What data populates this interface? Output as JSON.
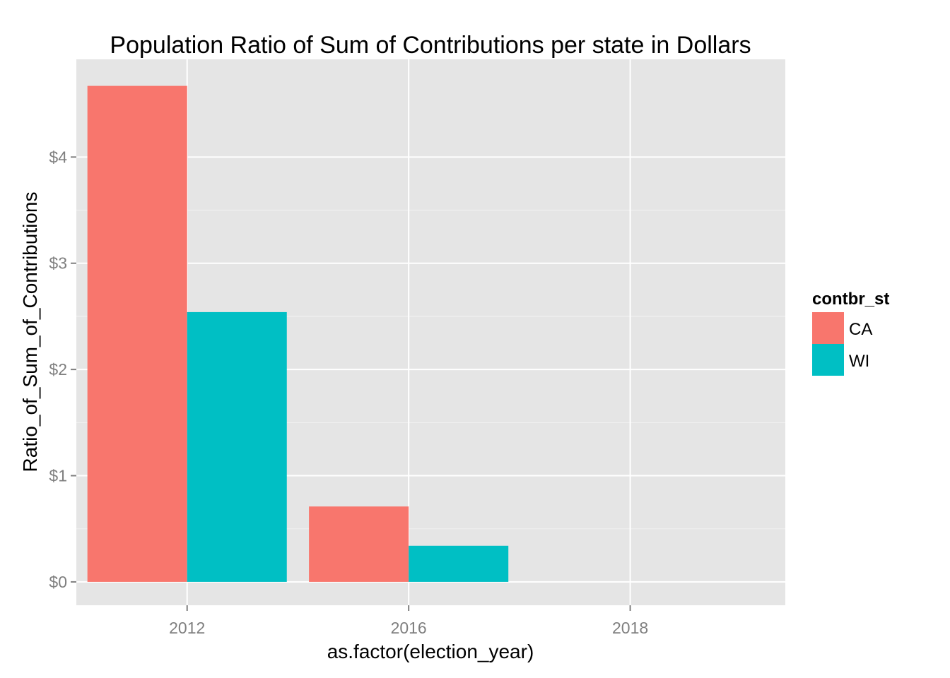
{
  "chart_data": {
    "type": "bar",
    "title": "Population Ratio of Sum of Contributions per state in Dollars",
    "xlabel": "as.factor(election_year)",
    "ylabel": "Ratio_of_Sum_of_Contributions",
    "categories": [
      "2012",
      "2016",
      "2018"
    ],
    "series": [
      {
        "name": "CA",
        "color": "#F8766D",
        "values": [
          4.67,
          0.71,
          0
        ]
      },
      {
        "name": "WI",
        "color": "#00BFC4",
        "values": [
          2.54,
          0.34,
          0
        ]
      }
    ],
    "ylim": [
      -0.22,
      4.92
    ],
    "yticks": [
      0,
      1,
      2,
      3,
      4
    ],
    "ytick_labels": [
      "$0",
      "$1",
      "$2",
      "$3",
      "$4"
    ],
    "legend": {
      "title": "contbr_st",
      "position": "right"
    },
    "grid": true,
    "panel_background": "#E5E5E5",
    "grid_color": "#FFFFFF"
  }
}
